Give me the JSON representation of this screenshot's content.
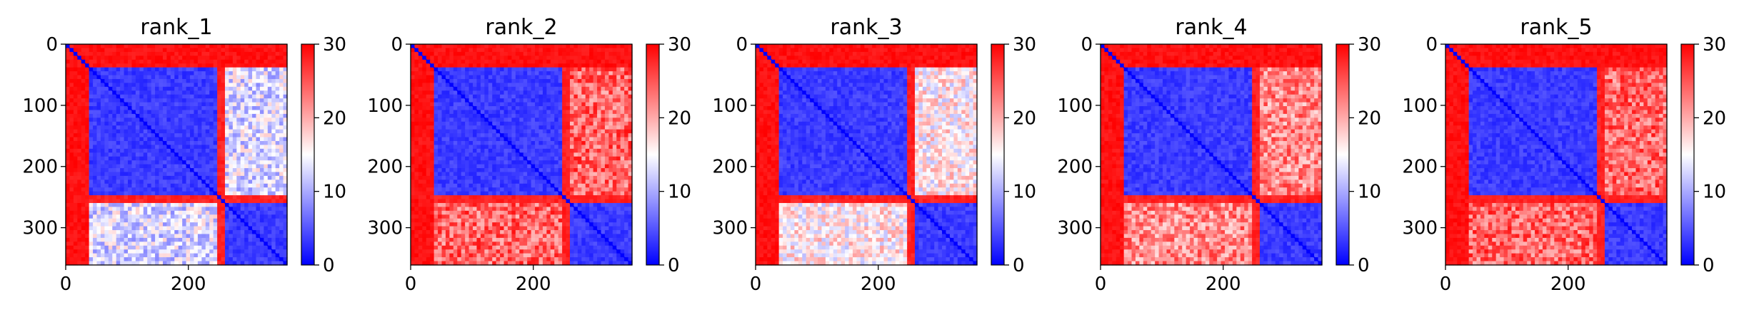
{
  "figure": {
    "panel_count": 5
  },
  "chart_data": [
    {
      "type": "heatmap",
      "title": "rank_1",
      "xlim": [
        0,
        361
      ],
      "ylim": [
        361,
        0
      ],
      "xticks": [
        0,
        200
      ],
      "yticks": [
        0,
        100,
        200,
        300
      ],
      "colorbar": {
        "range": [
          0,
          30
        ],
        "ticks": [
          0,
          10,
          20,
          30
        ],
        "colors": [
          "#0000ff",
          "#ffffff",
          "#ff0000"
        ]
      },
      "blocks": {
        "n_total": 361,
        "diag_band": [
          0,
          35
        ],
        "domain_a": [
          35,
          248
        ],
        "domain_b": [
          262,
          361
        ]
      },
      "region_levels": {
        "band_to_rest": 30,
        "domain_a": 2,
        "domain_b": 2,
        "inter_domain": 13
      }
    },
    {
      "type": "heatmap",
      "title": "rank_2",
      "xlim": [
        0,
        361
      ],
      "ylim": [
        361,
        0
      ],
      "xticks": [
        0,
        200
      ],
      "yticks": [
        0,
        100,
        200,
        300
      ],
      "colorbar": {
        "range": [
          0,
          30
        ],
        "ticks": [
          0,
          10,
          20,
          30
        ],
        "colors": [
          "#0000ff",
          "#ffffff",
          "#ff0000"
        ]
      },
      "blocks": {
        "n_total": 361,
        "diag_band": [
          0,
          35
        ],
        "domain_a": [
          35,
          248
        ],
        "domain_b": [
          262,
          361
        ]
      },
      "region_levels": {
        "band_to_rest": 30,
        "domain_a": 2,
        "domain_b": 2,
        "inter_domain": 24
      }
    },
    {
      "type": "heatmap",
      "title": "rank_3",
      "xlim": [
        0,
        361
      ],
      "ylim": [
        361,
        0
      ],
      "xticks": [
        0,
        200
      ],
      "yticks": [
        0,
        100,
        200,
        300
      ],
      "colorbar": {
        "range": [
          0,
          30
        ],
        "ticks": [
          0,
          10,
          20,
          30
        ],
        "colors": [
          "#0000ff",
          "#ffffff",
          "#ff0000"
        ]
      },
      "blocks": {
        "n_total": 361,
        "diag_band": [
          0,
          35
        ],
        "domain_a": [
          35,
          248
        ],
        "domain_b": [
          262,
          361
        ]
      },
      "region_levels": {
        "band_to_rest": 30,
        "domain_a": 2,
        "domain_b": 2,
        "inter_domain": 16
      }
    },
    {
      "type": "heatmap",
      "title": "rank_4",
      "xlim": [
        0,
        361
      ],
      "ylim": [
        361,
        0
      ],
      "xticks": [
        0,
        200
      ],
      "yticks": [
        0,
        100,
        200,
        300
      ],
      "colorbar": {
        "range": [
          0,
          30
        ],
        "ticks": [
          0,
          10,
          20,
          30
        ],
        "colors": [
          "#0000ff",
          "#ffffff",
          "#ff0000"
        ]
      },
      "blocks": {
        "n_total": 361,
        "diag_band": [
          0,
          35
        ],
        "domain_a": [
          35,
          248
        ],
        "domain_b": [
          262,
          361
        ]
      },
      "region_levels": {
        "band_to_rest": 30,
        "domain_a": 2,
        "domain_b": 2,
        "inter_domain": 22
      }
    },
    {
      "type": "heatmap",
      "title": "rank_5",
      "xlim": [
        0,
        361
      ],
      "ylim": [
        361,
        0
      ],
      "xticks": [
        0,
        200
      ],
      "yticks": [
        0,
        100,
        200,
        300
      ],
      "colorbar": {
        "range": [
          0,
          30
        ],
        "ticks": [
          0,
          10,
          20,
          30
        ],
        "colors": [
          "#0000ff",
          "#ffffff",
          "#ff0000"
        ]
      },
      "blocks": {
        "n_total": 361,
        "diag_band": [
          0,
          35
        ],
        "domain_a": [
          35,
          248
        ],
        "domain_b": [
          262,
          361
        ]
      },
      "region_levels": {
        "band_to_rest": 30,
        "domain_a": 2,
        "domain_b": 2,
        "inter_domain": 24
      }
    }
  ]
}
